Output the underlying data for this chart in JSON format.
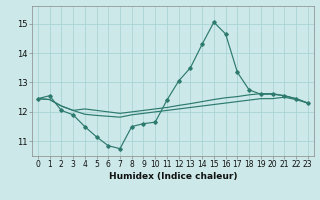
{
  "xlabel": "Humidex (Indice chaleur)",
  "bg_color": "#cce8e8",
  "grid_color": "#aad4d4",
  "line_color": "#2d7a6e",
  "x_data": [
    0,
    1,
    2,
    3,
    4,
    5,
    6,
    7,
    8,
    9,
    10,
    11,
    12,
    13,
    14,
    15,
    16,
    17,
    18,
    19,
    20,
    21,
    22,
    23
  ],
  "y_main": [
    12.45,
    12.55,
    12.05,
    11.9,
    11.5,
    11.15,
    10.85,
    10.75,
    11.5,
    11.6,
    11.65,
    12.4,
    13.05,
    13.5,
    14.3,
    15.05,
    14.65,
    13.35,
    12.75,
    12.6,
    12.6,
    12.55,
    12.45,
    12.3
  ],
  "y_line1": [
    12.45,
    12.42,
    12.2,
    12.05,
    12.1,
    12.05,
    12.0,
    11.95,
    12.0,
    12.05,
    12.1,
    12.15,
    12.22,
    12.28,
    12.35,
    12.42,
    12.48,
    12.52,
    12.58,
    12.62,
    12.62,
    12.55,
    12.45,
    12.3
  ],
  "y_line2": [
    12.45,
    12.42,
    12.2,
    12.05,
    11.92,
    11.88,
    11.85,
    11.82,
    11.9,
    11.95,
    12.0,
    12.05,
    12.1,
    12.15,
    12.2,
    12.25,
    12.3,
    12.35,
    12.4,
    12.45,
    12.45,
    12.5,
    12.42,
    12.3
  ],
  "ylim_min": 10.5,
  "ylim_max": 15.6,
  "yticks": [
    11,
    12,
    13,
    14,
    15
  ],
  "xticks": [
    0,
    1,
    2,
    3,
    4,
    5,
    6,
    7,
    8,
    9,
    10,
    11,
    12,
    13,
    14,
    15,
    16,
    17,
    18,
    19,
    20,
    21,
    22,
    23
  ],
  "tick_fontsize": 5.5,
  "xlabel_fontsize": 6.5
}
